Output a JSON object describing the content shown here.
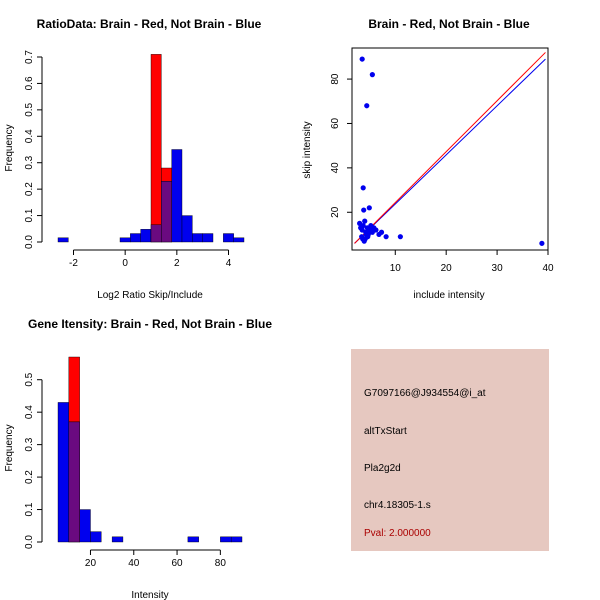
{
  "colors": {
    "red": "#ff0000",
    "blue": "#0000ee",
    "overlap": "#6a0a80",
    "info_bg": "#e6c8c0",
    "pval": "#aa0000",
    "axis": "#000000"
  },
  "chart_data": [
    {
      "type": "bar",
      "id": "ratio_hist",
      "title": "RatioData: Brain - Red, Not Brain - Blue",
      "xlabel": "Log2 Ratio Skip/Include",
      "ylabel": "Frequency",
      "xlim": [
        -2.6,
        4.6
      ],
      "ylim": [
        0,
        0.7
      ],
      "xticks": [
        -2,
        0,
        2,
        4
      ],
      "yticks": [
        0.0,
        0.1,
        0.2,
        0.3,
        0.4,
        0.5,
        0.6,
        0.7
      ],
      "bin_width": 0.4,
      "series": [
        {
          "name": "Not Brain",
          "color": "blue",
          "bins": [
            -2.6,
            -2.2,
            -1.8,
            -1.4,
            -1.0,
            -0.6,
            -0.2,
            0.2,
            0.6,
            1.0,
            1.4,
            1.8,
            2.2,
            2.6,
            3.0,
            3.4,
            3.8,
            4.2
          ],
          "values": [
            0.016,
            0,
            0,
            0,
            0,
            0,
            0.016,
            0.032,
            0.048,
            0.065,
            0.23,
            0.35,
            0.1,
            0.032,
            0.032,
            0,
            0.032,
            0.016
          ]
        },
        {
          "name": "Brain",
          "color": "red",
          "bins": [
            1.0,
            1.4
          ],
          "values": [
            0.71,
            0.28
          ]
        }
      ]
    },
    {
      "type": "scatter",
      "id": "intensity_scatter",
      "title": "Brain - Red, Not Brain - Blue",
      "xlabel": "include intensity",
      "ylabel": "skip intensity",
      "xlim": [
        1.5,
        40
      ],
      "ylim": [
        3,
        94
      ],
      "xticks": [
        10,
        20,
        30,
        40
      ],
      "yticks": [
        20,
        40,
        60,
        80
      ],
      "points": {
        "x": [
          3.5,
          4.4,
          5.5,
          3.7,
          4.9,
          3.8,
          3.0,
          3.2,
          3.5,
          3.7,
          4.0,
          4.2,
          4.5,
          4.7,
          5.0,
          5.2,
          5.5,
          5.8,
          6.2,
          6.8,
          7.3,
          8.2,
          4.1,
          3.4,
          3.9,
          4.6,
          4.3,
          3.6,
          11.0,
          38.8
        ],
        "y": [
          89.0,
          68.0,
          82.0,
          31.0,
          22.0,
          21.0,
          15.0,
          13.0,
          12.0,
          14.0,
          16.0,
          11.0,
          13.0,
          10.0,
          12.0,
          14.0,
          11.0,
          13.0,
          12.0,
          10.0,
          11.0,
          9.0,
          8.0,
          9.0,
          7.0,
          9.0,
          10.0,
          8.0,
          9.0,
          6.0
        ]
      },
      "lines": [
        {
          "name": "Not Brain fit",
          "color": "blue",
          "x": [
            2.0,
            39.5
          ],
          "y": [
            6.0,
            89.0
          ]
        },
        {
          "name": "Brain fit",
          "color": "red",
          "x": [
            2.0,
            39.5
          ],
          "y": [
            6.0,
            92.0
          ]
        }
      ]
    },
    {
      "type": "bar",
      "id": "gene_hist",
      "title": "Gene Itensity: Brain - Red, Not Brain - Blue",
      "xlabel": "Intensity",
      "ylabel": "Frequency",
      "xlim": [
        5,
        90
      ],
      "ylim": [
        0,
        0.57
      ],
      "xticks": [
        20,
        40,
        60,
        80
      ],
      "yticks": [
        0.0,
        0.1,
        0.2,
        0.3,
        0.4,
        0.5
      ],
      "bin_width": 5,
      "series": [
        {
          "name": "Not Brain",
          "color": "blue",
          "bins": [
            5,
            10,
            15,
            20,
            25,
            30,
            35,
            40,
            45,
            50,
            55,
            60,
            65,
            70,
            75,
            80,
            85
          ],
          "values": [
            0.43,
            0.37,
            0.1,
            0.032,
            0,
            0.016,
            0,
            0,
            0,
            0,
            0,
            0,
            0.016,
            0,
            0,
            0.016,
            0.016
          ]
        },
        {
          "name": "Brain",
          "color": "red",
          "bins": [
            10
          ],
          "values": [
            0.57
          ]
        }
      ]
    }
  ],
  "info_panel": {
    "probe": "G7097166@J934554@i_at",
    "event": "altTxStart",
    "gene": "Pla2g2d",
    "location": "chr4.18305-1.s",
    "pval": "Pval: 2.000000"
  }
}
